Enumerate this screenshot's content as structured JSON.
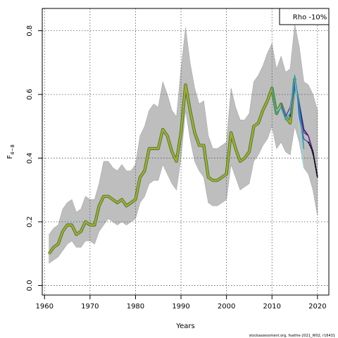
{
  "chart_data": {
    "type": "line",
    "xlabel": "Years",
    "ylabel_main": "F",
    "ylabel_sub": "4−8",
    "xlim": [
      1959.5,
      2022.5
    ],
    "ylim": [
      -0.03,
      0.87
    ],
    "x_ticks": [
      1960,
      1970,
      1980,
      1990,
      2000,
      2010,
      2020
    ],
    "y_ticks": [
      0.0,
      0.2,
      0.4,
      0.6,
      0.8
    ],
    "y_tick_labels": [
      "0.0",
      "0.2",
      "0.4",
      "0.6",
      "0.8"
    ],
    "grid": true,
    "legend": {
      "placement": "top-right",
      "label": "Rho -10%"
    },
    "colors": {
      "band": "#bebebe",
      "band_edge": "#a8a8a8",
      "main": "#b3a628",
      "outline": "#1f7a3a",
      "grid": "#555555"
    },
    "band": {
      "x": [
        1961,
        1962,
        1963,
        1964,
        1965,
        1966,
        1967,
        1968,
        1969,
        1970,
        1971,
        1972,
        1973,
        1974,
        1975,
        1976,
        1977,
        1978,
        1979,
        1980,
        1981,
        1982,
        1983,
        1984,
        1985,
        1986,
        1987,
        1988,
        1989,
        1990,
        1991,
        1992,
        1993,
        1994,
        1995,
        1996,
        1997,
        1998,
        1999,
        2000,
        2001,
        2002,
        2003,
        2004,
        2005,
        2006,
        2007,
        2008,
        2009,
        2010,
        2011,
        2012,
        2013,
        2014,
        2015,
        2016,
        2017,
        2018,
        2019,
        2020
      ],
      "upper": [
        0.16,
        0.18,
        0.19,
        0.24,
        0.26,
        0.27,
        0.23,
        0.24,
        0.28,
        0.27,
        0.27,
        0.32,
        0.39,
        0.39,
        0.37,
        0.36,
        0.38,
        0.36,
        0.36,
        0.38,
        0.47,
        0.5,
        0.55,
        0.57,
        0.56,
        0.64,
        0.6,
        0.55,
        0.53,
        0.68,
        0.81,
        0.7,
        0.62,
        0.57,
        0.58,
        0.47,
        0.43,
        0.43,
        0.44,
        0.45,
        0.62,
        0.56,
        0.52,
        0.52,
        0.54,
        0.64,
        0.66,
        0.69,
        0.73,
        0.76,
        0.68,
        0.72,
        0.67,
        0.68,
        0.82,
        0.75,
        0.64,
        0.63,
        0.6,
        0.55
      ],
      "lower": [
        0.07,
        0.08,
        0.09,
        0.11,
        0.13,
        0.14,
        0.12,
        0.12,
        0.14,
        0.14,
        0.13,
        0.17,
        0.19,
        0.21,
        0.2,
        0.19,
        0.2,
        0.19,
        0.2,
        0.21,
        0.26,
        0.28,
        0.32,
        0.33,
        0.33,
        0.38,
        0.35,
        0.32,
        0.3,
        0.4,
        0.55,
        0.46,
        0.39,
        0.36,
        0.34,
        0.26,
        0.25,
        0.25,
        0.26,
        0.27,
        0.38,
        0.34,
        0.3,
        0.31,
        0.32,
        0.39,
        0.41,
        0.44,
        0.46,
        0.5,
        0.43,
        0.45,
        0.42,
        0.41,
        0.5,
        0.45,
        0.37,
        0.35,
        0.3,
        0.22
      ]
    },
    "series": [
      {
        "name": "",
        "x": [
          1961,
          1962,
          1963,
          1964,
          1965,
          1966,
          1967,
          1968,
          1969,
          1970,
          1971,
          1972,
          1973,
          1974,
          1975,
          1976,
          1977,
          1978,
          1979,
          1980,
          1981,
          1982,
          1983,
          1984,
          1985,
          1986,
          1987,
          1988,
          1989,
          1990,
          1991,
          1992,
          1993,
          1994,
          1995,
          1996,
          1997,
          1998,
          1999,
          2000,
          2001,
          2002,
          2003,
          2004,
          2005,
          2006,
          2007,
          2008,
          2009,
          2010,
          2011,
          2012,
          2013,
          2014,
          2015
        ],
        "y": [
          0.1,
          0.12,
          0.13,
          0.17,
          0.19,
          0.19,
          0.16,
          0.17,
          0.2,
          0.19,
          0.19,
          0.25,
          0.28,
          0.28,
          0.27,
          0.26,
          0.27,
          0.25,
          0.26,
          0.27,
          0.34,
          0.36,
          0.43,
          0.43,
          0.43,
          0.49,
          0.47,
          0.42,
          0.39,
          0.48,
          0.63,
          0.55,
          0.48,
          0.44,
          0.44,
          0.34,
          0.33,
          0.33,
          0.34,
          0.35,
          0.48,
          0.43,
          0.39,
          0.4,
          0.42,
          0.5,
          0.51,
          0.55,
          0.58,
          0.62,
          0.54,
          0.57,
          0.53,
          0.51,
          0.65
        ],
        "color": "#b3a628",
        "width": 2.6
      },
      {
        "name": "",
        "x": [
          2014,
          2015,
          2016,
          2017,
          2018,
          2019,
          2020
        ],
        "y": [
          0.53,
          0.65,
          0.57,
          0.49,
          0.47,
          0.42,
          0.34
        ],
        "color": "#1a237e",
        "width": 1.6
      },
      {
        "name": "",
        "x": [
          2013,
          2014,
          2015,
          2016,
          2017,
          2018,
          2019
        ],
        "y": [
          0.53,
          0.56,
          0.65,
          0.55,
          0.48,
          0.47,
          0.41
        ],
        "color": "#7b2d8e",
        "width": 1.4
      },
      {
        "name": "",
        "x": [
          2012,
          2013,
          2014,
          2015,
          2016,
          2017,
          2018
        ],
        "y": [
          0.57,
          0.53,
          0.54,
          0.63,
          0.53,
          0.46,
          0.45
        ],
        "color": "#2e5cc8",
        "width": 1.4
      },
      {
        "name": "",
        "x": [
          2011,
          2012,
          2013,
          2014,
          2015,
          2016,
          2017
        ],
        "y": [
          0.55,
          0.56,
          0.52,
          0.55,
          0.66,
          0.49,
          0.37
        ],
        "color": "#9ed3e0",
        "width": 1.4
      },
      {
        "name": "",
        "x": [
          2010,
          2011,
          2012,
          2013,
          2014,
          2015,
          2016,
          2017
        ],
        "y": [
          0.62,
          0.54,
          0.56,
          0.52,
          0.54,
          0.66,
          0.56,
          0.43
        ],
        "color": "#2a9e9e",
        "width": 1.4
      },
      {
        "name": "",
        "x": [
          2018,
          2019,
          2020
        ],
        "y": [
          0.45,
          0.42,
          0.34
        ],
        "color": "#000000",
        "width": 1.6,
        "dashed": true
      }
    ],
    "footer": "stockassessment.org, fsaithe-2021_W02, r16431"
  }
}
